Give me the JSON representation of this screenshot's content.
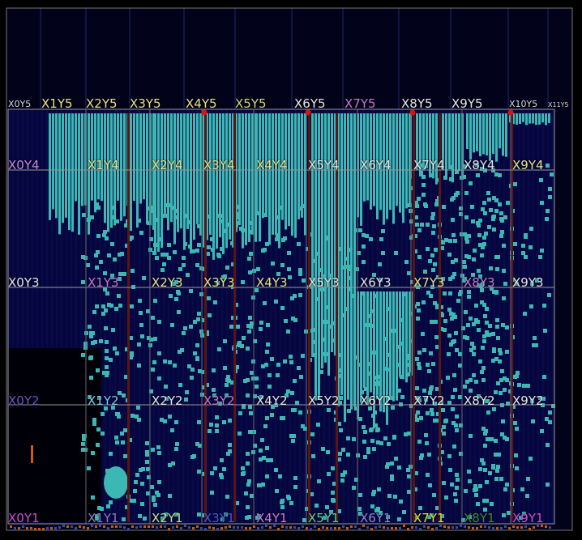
{
  "colors": {
    "background": "#000000",
    "device_fill": "#05063d",
    "logic_fill": "#3cb8b4",
    "logic_edge": "#2a8e8a",
    "clock_region_border": "#9a9a9a",
    "clock_route": "#5a1414",
    "marker": "#e01010"
  },
  "regions": {
    "top_row": [
      {
        "label": "X0Y5",
        "color": "#d8d8d8",
        "size": "small"
      },
      {
        "label": "X1Y5",
        "color": "#e6e08a"
      },
      {
        "label": "X2Y5",
        "color": "#e6e08a"
      },
      {
        "label": "X3Y5",
        "color": "#e6e08a"
      },
      {
        "label": "X4Y5",
        "color": "#e6e08a"
      },
      {
        "label": "X5Y5",
        "color": "#d7d57a"
      },
      {
        "label": "X6Y5",
        "color": "#e6e6e6"
      },
      {
        "label": "X7Y5",
        "color": "#c77ad0"
      },
      {
        "label": "X8Y5",
        "color": "#e6e6e6"
      },
      {
        "label": "X9Y5",
        "color": "#e6e6e6"
      },
      {
        "label": "X10Y5",
        "color": "#d8d8d8",
        "size": "small"
      },
      {
        "label": "X11Y5",
        "color": "#d8d8d8",
        "size": "tiny"
      }
    ],
    "row_y4": [
      {
        "label": "X0Y4",
        "color": "#c78ad8"
      },
      {
        "label": "X1Y4",
        "color": "#e6e08a"
      },
      {
        "label": "X2Y4",
        "color": "#e6e08a"
      },
      {
        "label": "X3Y4",
        "color": "#e6e08a"
      },
      {
        "label": "X4Y4",
        "color": "#e6e08a"
      },
      {
        "label": "X5Y4",
        "color": "#e6e6e6"
      },
      {
        "label": "X6Y4",
        "color": "#e6e6e6"
      },
      {
        "label": "X7Y4",
        "color": "#e6e6e6"
      },
      {
        "label": "X8Y4",
        "color": "#e6e6e6"
      },
      {
        "label": "X9Y4",
        "color": "#e6e08a"
      }
    ],
    "row_y3": [
      {
        "label": "X0Y3",
        "color": "#e6e6e6"
      },
      {
        "label": "X1Y3",
        "color": "#c77ad0"
      },
      {
        "label": "X2Y3",
        "color": "#e6e08a"
      },
      {
        "label": "X3Y3",
        "color": "#e6e08a"
      },
      {
        "label": "X4Y3",
        "color": "#e6e08a"
      },
      {
        "label": "X5Y3",
        "color": "#e6e6e6"
      },
      {
        "label": "X6Y3",
        "color": "#e6e6e6"
      },
      {
        "label": "X7Y3",
        "color": "#e6e08a"
      },
      {
        "label": "X8Y3",
        "color": "#c77ad0"
      },
      {
        "label": "X9Y3",
        "color": "#e6e6e6"
      }
    ],
    "row_y2": [
      {
        "label": "X0Y2",
        "color": "#7050c8"
      },
      {
        "label": "X1Y2",
        "color": "#7ec8e8"
      },
      {
        "label": "X2Y2",
        "color": "#e6e6e6"
      },
      {
        "label": "X3Y2",
        "color": "#c77ad0"
      },
      {
        "label": "X4Y2",
        "color": "#e6e6e6"
      },
      {
        "label": "X5Y2",
        "color": "#e6e6e6"
      },
      {
        "label": "X6Y2",
        "color": "#e6e6e6"
      },
      {
        "label": "X7Y2",
        "color": "#e6e6e6"
      },
      {
        "label": "X8Y2",
        "color": "#e6e6e6"
      },
      {
        "label": "X9Y2",
        "color": "#e6e6e6"
      }
    ],
    "row_y1": [
      {
        "label": "X0Y1",
        "color": "#d04ad8"
      },
      {
        "label": "X1Y1",
        "color": "#8c7ad8"
      },
      {
        "label": "X2Y1",
        "color": "#c8e08a"
      },
      {
        "label": "X3Y1",
        "color": "#4a58d8"
      },
      {
        "label": "X4Y1",
        "color": "#d07ad8"
      },
      {
        "label": "X5Y1",
        "color": "#5ad88a"
      },
      {
        "label": "X6Y1",
        "color": "#8c8ce0"
      },
      {
        "label": "X7Y1",
        "color": "#e0e030"
      },
      {
        "label": "X8Y1",
        "color": "#3a8a3a"
      },
      {
        "label": "X9Y1",
        "color": "#d050d8"
      }
    ]
  }
}
